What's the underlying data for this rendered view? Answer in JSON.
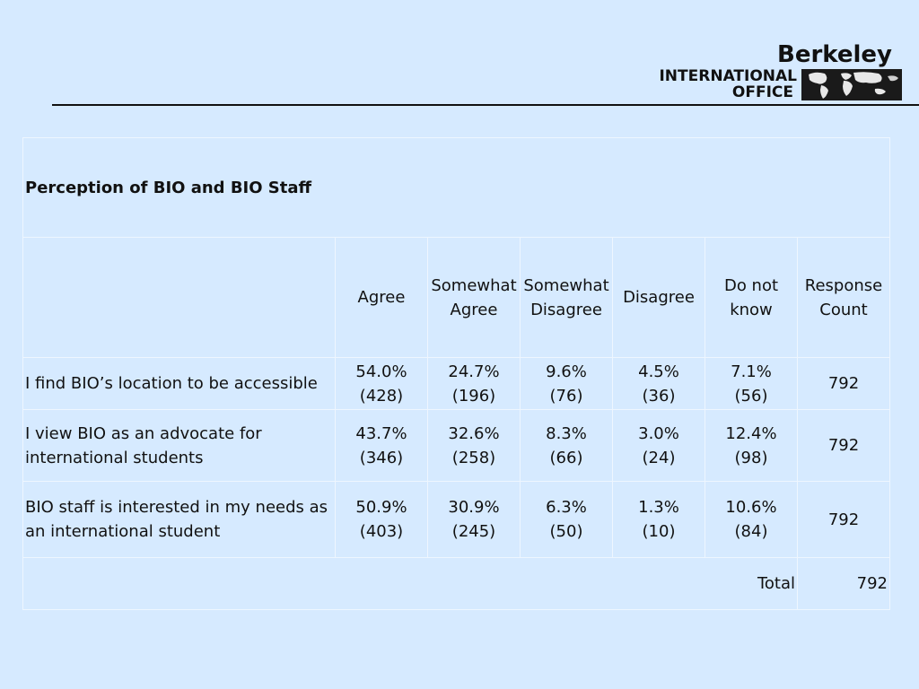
{
  "logo": {
    "berkeley": "Berkeley",
    "international": "INTERNATIONAL",
    "office": "OFFICE",
    "map_icon": "world-map-icon"
  },
  "table": {
    "title": "Perception of BIO and BIO Staff",
    "headers": [
      {
        "line1": "Agree",
        "line2": ""
      },
      {
        "line1": "Somewhat",
        "line2": "Agree"
      },
      {
        "line1": "Somewhat",
        "line2": "Disagree"
      },
      {
        "line1": "Disagree",
        "line2": ""
      },
      {
        "line1": "Do not",
        "line2": "know"
      },
      {
        "line1": "Response",
        "line2": "Count"
      }
    ],
    "rows": [
      {
        "label": "I find BIO’s location to be accessible",
        "cells": [
          {
            "pct": "54.0%",
            "n": "(428)"
          },
          {
            "pct": "24.7%",
            "n": "(196)"
          },
          {
            "pct": "9.6%",
            "n": "(76)"
          },
          {
            "pct": "4.5%",
            "n": "(36)"
          },
          {
            "pct": "7.1%",
            "n": "(56)"
          }
        ],
        "count": "792"
      },
      {
        "label": "I view BIO as an advocate for international students",
        "cells": [
          {
            "pct": "43.7%",
            "n": "(346)"
          },
          {
            "pct": "32.6%",
            "n": "(258)"
          },
          {
            "pct": "8.3%",
            "n": "(66)"
          },
          {
            "pct": "3.0%",
            "n": "(24)"
          },
          {
            "pct": "12.4%",
            "n": "(98)"
          }
        ],
        "count": "792"
      },
      {
        "label": "BIO staff is interested in my needs as an international student",
        "cells": [
          {
            "pct": "50.9%",
            "n": "(403)"
          },
          {
            "pct": "30.9%",
            "n": "(245)"
          },
          {
            "pct": "6.3%",
            "n": "(50)"
          },
          {
            "pct": "1.3%",
            "n": "(10)"
          },
          {
            "pct": "10.6%",
            "n": "(84)"
          }
        ],
        "count": "792"
      }
    ],
    "total_label": "Total",
    "total_value": "792"
  }
}
